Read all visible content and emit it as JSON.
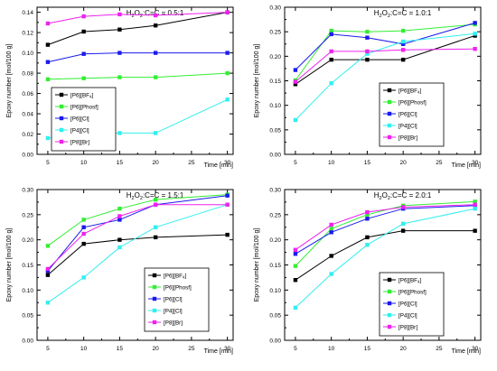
{
  "chart_data": [
    {
      "type": "line",
      "title": "H₂O₂:C=C = 0.5:1",
      "xlabel": "Time [min]",
      "ylabel": "Epoxy number [mol/100 g]",
      "x": [
        5,
        10,
        15,
        20,
        30
      ],
      "xlim": [
        3.5,
        30.8
      ],
      "ylim": [
        0.0,
        0.145
      ],
      "xticks": [
        5,
        10,
        15,
        20,
        25,
        30
      ],
      "xtick_labels": [
        "5",
        "10",
        "15",
        "20",
        "25",
        "30"
      ],
      "yticks": [
        0.0,
        0.02,
        0.04,
        0.06,
        0.08,
        0.1,
        0.12,
        0.14
      ],
      "ytick_labels": [
        "0.00",
        "0.02",
        "0.04",
        "0.06",
        "0.08",
        "0.10",
        "0.12",
        "0.14"
      ],
      "legend_position": "center-left",
      "series": [
        {
          "name": "[P6][BF₄]",
          "color": "#000000",
          "values": [
            0.108,
            0.121,
            0.123,
            0.127,
            0.14
          ]
        },
        {
          "name": "[P6][Phosf]",
          "color": "#33ee33",
          "values": [
            0.074,
            0.075,
            0.076,
            0.076,
            0.08
          ]
        },
        {
          "name": "[P6][Cl]",
          "color": "#1a1aee",
          "values": [
            0.091,
            0.099,
            0.1,
            0.1,
            0.1
          ]
        },
        {
          "name": "[P4][Cl]",
          "color": "#33eeee",
          "values": [
            0.016,
            0.019,
            0.021,
            0.021,
            0.054
          ]
        },
        {
          "name": "[P8][Br]",
          "color": "#ee22ee",
          "values": [
            0.129,
            0.136,
            0.138,
            0.137,
            0.14
          ]
        }
      ]
    },
    {
      "type": "line",
      "title": "H₂O₂:C=C = 1.0:1",
      "xlabel": "Time [min]",
      "ylabel": "Epoxy number [mol/100 g]",
      "x": [
        5,
        10,
        15,
        20,
        30
      ],
      "xlim": [
        3.5,
        30.8
      ],
      "ylim": [
        0.0,
        0.3
      ],
      "xticks": [
        5,
        10,
        15,
        20,
        25,
        30
      ],
      "xtick_labels": [
        "5",
        "10",
        "15",
        "20",
        "25",
        "30"
      ],
      "yticks": [
        0.0,
        0.05,
        0.1,
        0.15,
        0.2,
        0.25,
        0.3
      ],
      "ytick_labels": [
        "0.00",
        "0.05",
        "0.10",
        "0.15",
        "0.20",
        "0.25",
        "0.30"
      ],
      "legend_position": "bottom-right",
      "series": [
        {
          "name": "[P6][BF₄]",
          "color": "#000000",
          "values": [
            0.143,
            0.193,
            0.193,
            0.193,
            0.242
          ]
        },
        {
          "name": "[P6][Phosf]",
          "color": "#33ee33",
          "values": [
            0.151,
            0.252,
            0.25,
            0.252,
            0.265
          ]
        },
        {
          "name": "[P6][Cl]",
          "color": "#1a1aee",
          "values": [
            0.172,
            0.245,
            0.238,
            0.225,
            0.268
          ]
        },
        {
          "name": "[P4][Cl]",
          "color": "#33eeee",
          "values": [
            0.07,
            0.145,
            0.205,
            0.23,
            0.246
          ]
        },
        {
          "name": "[P8][Br]",
          "color": "#ee22ee",
          "values": [
            0.148,
            0.21,
            0.21,
            0.213,
            0.215
          ]
        }
      ]
    },
    {
      "type": "line",
      "title": "H₂O₂:C=C = 1.5:1",
      "xlabel": "Time [min]",
      "ylabel": "Epoxy number [mol/100 g]",
      "x": [
        5,
        10,
        15,
        20,
        30
      ],
      "xlim": [
        3.5,
        30.8
      ],
      "ylim": [
        0.0,
        0.3
      ],
      "xticks": [
        5,
        10,
        15,
        20,
        25,
        30
      ],
      "xtick_labels": [
        "5",
        "10",
        "15",
        "20",
        "25",
        "30"
      ],
      "yticks": [
        0.0,
        0.05,
        0.1,
        0.15,
        0.2,
        0.25,
        0.3
      ],
      "ytick_labels": [
        "0.00",
        "0.05",
        "0.10",
        "0.15",
        "0.20",
        "0.25",
        "0.30"
      ],
      "legend_position": "bottom-right",
      "series": [
        {
          "name": "[P6][BF₄]",
          "color": "#000000",
          "values": [
            0.13,
            0.192,
            0.2,
            0.205,
            0.21
          ]
        },
        {
          "name": "[P6][Phosf]",
          "color": "#33ee33",
          "values": [
            0.188,
            0.24,
            0.262,
            0.28,
            0.29
          ]
        },
        {
          "name": "[P6][Cl]",
          "color": "#1a1aee",
          "values": [
            0.138,
            0.225,
            0.24,
            0.27,
            0.288
          ]
        },
        {
          "name": "[P4][Cl]",
          "color": "#33eeee",
          "values": [
            0.075,
            0.125,
            0.185,
            0.225,
            0.27
          ]
        },
        {
          "name": "[P8][Br]",
          "color": "#ee22ee",
          "values": [
            0.142,
            0.212,
            0.247,
            0.27,
            0.27
          ]
        }
      ]
    },
    {
      "type": "line",
      "title": "H₂O₂:C=C = 2.0:1",
      "xlabel": "Time [min]",
      "ylabel": "Epoxy number [mol/100 g]",
      "x": [
        5,
        10,
        15,
        20,
        30
      ],
      "xlim": [
        3.5,
        30.8
      ],
      "ylim": [
        0.0,
        0.3
      ],
      "xticks": [
        5,
        10,
        15,
        20,
        25,
        30
      ],
      "xtick_labels": [
        "5",
        "10",
        "15",
        "20",
        "25",
        "30"
      ],
      "yticks": [
        0.0,
        0.05,
        0.1,
        0.15,
        0.2,
        0.25,
        0.3
      ],
      "ytick_labels": [
        "0.00",
        "0.05",
        "0.10",
        "0.15",
        "0.20",
        "0.25",
        "0.30"
      ],
      "legend_position": "bottom-right",
      "series": [
        {
          "name": "[P6][BF₄]",
          "color": "#000000",
          "values": [
            0.12,
            0.168,
            0.205,
            0.218,
            0.218
          ]
        },
        {
          "name": "[P6][Phosf]",
          "color": "#33ee33",
          "values": [
            0.148,
            0.222,
            0.25,
            0.268,
            0.276
          ]
        },
        {
          "name": "[P6][Cl]",
          "color": "#1a1aee",
          "values": [
            0.172,
            0.215,
            0.242,
            0.262,
            0.268
          ]
        },
        {
          "name": "[P4][Cl]",
          "color": "#33eeee",
          "values": [
            0.065,
            0.132,
            0.19,
            0.232,
            0.262
          ]
        },
        {
          "name": "[P8][Br]",
          "color": "#ee22ee",
          "values": [
            0.18,
            0.23,
            0.255,
            0.265,
            0.27
          ]
        }
      ]
    }
  ]
}
